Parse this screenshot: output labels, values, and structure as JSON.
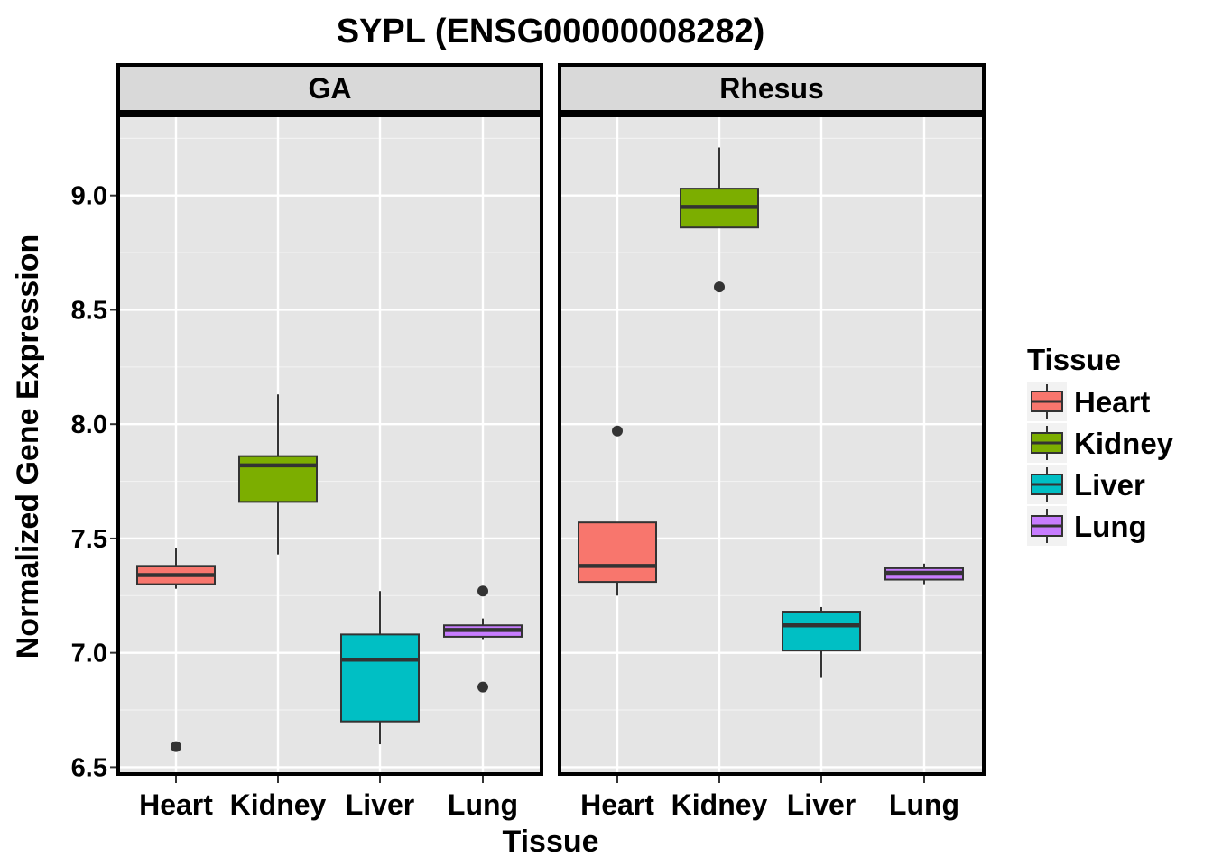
{
  "chart_data": {
    "type": "boxplot",
    "title": "SYPL (ENSG00000008282)",
    "xlabel": "Tissue",
    "ylabel": "Normalized Gene Expression",
    "ylim": [
      6.47,
      9.35
    ],
    "yticks": [
      6.5,
      7.0,
      7.5,
      8.0,
      8.5,
      9.0
    ],
    "ytick_labels": [
      "6.5",
      "7.0",
      "7.5",
      "8.0",
      "8.5",
      "9.0"
    ],
    "categories": [
      "Heart",
      "Kidney",
      "Liver",
      "Lung"
    ],
    "facets": [
      {
        "name": "GA",
        "boxes": [
          {
            "category": "Heart",
            "whisker_low": 7.28,
            "q1": 7.3,
            "median": 7.34,
            "q3": 7.38,
            "whisker_high": 7.46,
            "outliers": [
              6.59
            ]
          },
          {
            "category": "Kidney",
            "whisker_low": 7.43,
            "q1": 7.66,
            "median": 7.82,
            "q3": 7.86,
            "whisker_high": 8.13,
            "outliers": []
          },
          {
            "category": "Liver",
            "whisker_low": 6.6,
            "q1": 6.7,
            "median": 6.97,
            "q3": 7.08,
            "whisker_high": 7.27,
            "outliers": []
          },
          {
            "category": "Lung",
            "whisker_low": 7.06,
            "q1": 7.07,
            "median": 7.1,
            "q3": 7.12,
            "whisker_high": 7.15,
            "outliers": [
              7.27,
              6.85
            ]
          }
        ]
      },
      {
        "name": "Rhesus",
        "boxes": [
          {
            "category": "Heart",
            "whisker_low": 7.25,
            "q1": 7.31,
            "median": 7.38,
            "q3": 7.57,
            "whisker_high": 7.57,
            "outliers": [
              7.97
            ]
          },
          {
            "category": "Kidney",
            "whisker_low": 8.86,
            "q1": 8.86,
            "median": 8.95,
            "q3": 9.03,
            "whisker_high": 9.21,
            "outliers": [
              8.6
            ]
          },
          {
            "category": "Liver",
            "whisker_low": 6.89,
            "q1": 7.01,
            "median": 7.12,
            "q3": 7.18,
            "whisker_high": 7.2,
            "outliers": []
          },
          {
            "category": "Lung",
            "whisker_low": 7.3,
            "q1": 7.32,
            "median": 7.35,
            "q3": 7.37,
            "whisker_high": 7.39,
            "outliers": []
          }
        ]
      }
    ],
    "legend": {
      "title": "Tissue",
      "position": "right",
      "items": [
        {
          "label": "Heart",
          "color": "#F8766D"
        },
        {
          "label": "Kidney",
          "color": "#7CAE00"
        },
        {
          "label": "Liver",
          "color": "#00BFC4"
        },
        {
          "label": "Lung",
          "color": "#C77CFF"
        }
      ]
    },
    "grid": true,
    "panel_background": "#E5E5E5",
    "strip_background": "#D9D9D9"
  }
}
